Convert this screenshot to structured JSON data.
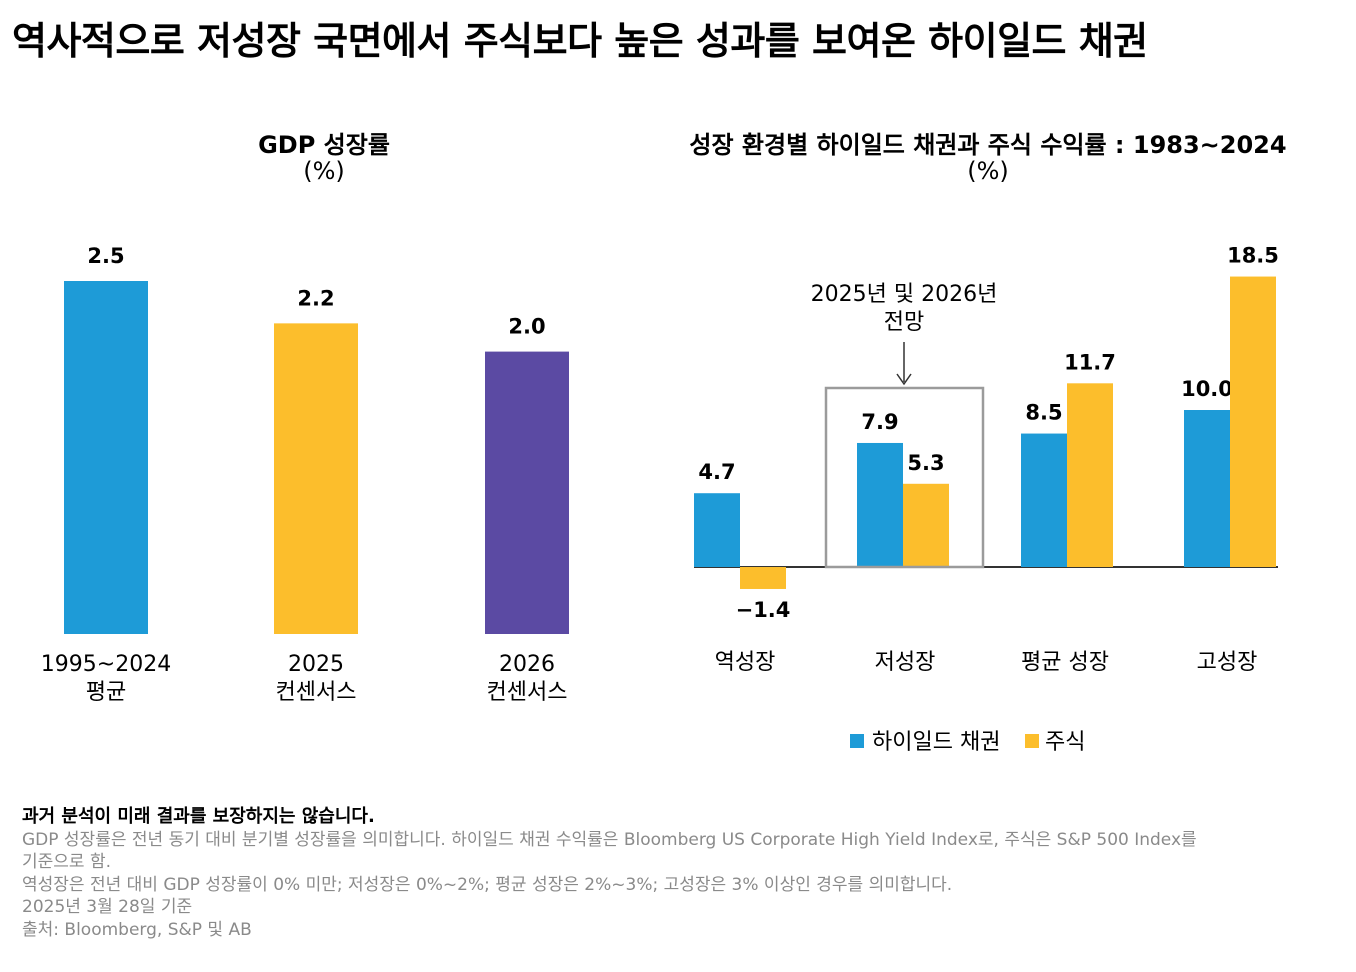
{
  "title": "역사적으로 저성장 국면에서 주식보다 높은 성과를 보여온 하이일드 채권",
  "colors": {
    "blue": "#1E9BD7",
    "yellow": "#FCBE2C",
    "purple": "#5B4AA3",
    "box": "#9b9b9b"
  },
  "chart_data": [
    {
      "type": "bar",
      "title": "GDP 성장률",
      "unit": "(%)",
      "categories": [
        [
          "1995~2024",
          "평균"
        ],
        [
          "2025",
          "컨센서스"
        ],
        [
          "2026",
          "컨센서스"
        ]
      ],
      "values": [
        2.5,
        2.2,
        2.0
      ],
      "value_labels": [
        "2.5",
        "2.2",
        "2.0"
      ],
      "bar_colors": [
        "#1E9BD7",
        "#FCBE2C",
        "#5B4AA3"
      ],
      "ylim": [
        0,
        2.5
      ]
    },
    {
      "type": "bar",
      "title": "성장 환경별 하이일드 채권과 주식 수익률 : 1983~2024",
      "unit": "(%)",
      "categories": [
        "역성장",
        "저성장",
        "평균 성장",
        "고성장"
      ],
      "series": [
        {
          "name": "하이일드 채권",
          "color": "#1E9BD7",
          "values": [
            4.7,
            7.9,
            8.5,
            10.0
          ],
          "labels": [
            "4.7",
            "7.9",
            "8.5",
            "10.0"
          ]
        },
        {
          "name": "주식",
          "color": "#FCBE2C",
          "values": [
            -1.4,
            5.3,
            11.7,
            18.5
          ],
          "labels": [
            "−1.4",
            "5.3",
            "11.7",
            "18.5"
          ]
        }
      ],
      "ylim": [
        -1.4,
        18.5
      ],
      "annotation": {
        "lines": [
          "2025년 및 2026년",
          "전망"
        ],
        "category": "저성장"
      },
      "legend": "bottom"
    }
  ],
  "footer": {
    "disclaimer": "과거 분석이 미래 결과를 보장하지는 않습니다.",
    "lines": [
      "GDP 성장률은 전년 동기 대비 분기별 성장률을 의미합니다. 하이일드 채권 수익률은 Bloomberg US Corporate High Yield Index로, 주식은 S&P 500 Index를",
      "기준으로 함.",
      "역성장은 전년 대비 GDP 성장률이 0% 미만; 저성장은 0%~2%; 평균 성장은 2%~3%; 고성장은 3% 이상인 경우를 의미합니다.",
      "2025년 3월 28일 기준",
      "출처: Bloomberg, S&P 및 AB"
    ]
  }
}
